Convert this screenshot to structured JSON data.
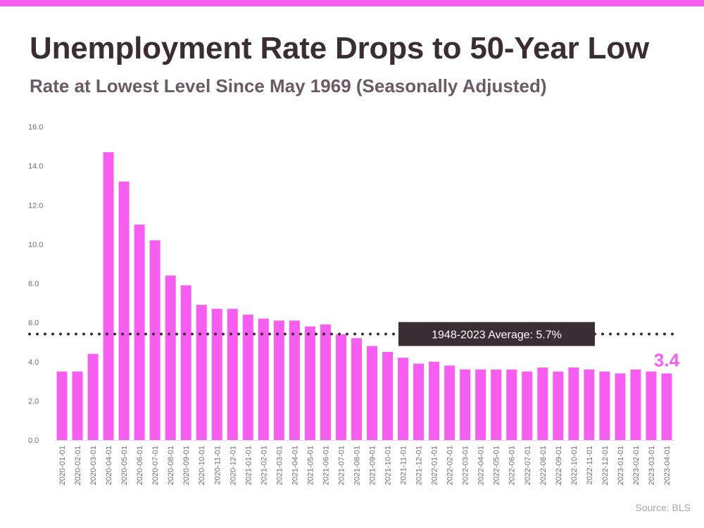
{
  "header": {
    "title": "Unemployment Rate Drops to 50-Year Low",
    "subtitle": "Rate at Lowest Level Since May 1969 (Seasonally Adjusted)"
  },
  "footer": {
    "source": "Source: BLS"
  },
  "colors": {
    "accent": "#f65df0",
    "reference_box": "#3a2d33",
    "title": "#3a2d33",
    "subtitle": "#6b5a66"
  },
  "chart_data": {
    "type": "bar",
    "title": "Unemployment Rate Drops to 50-Year Low",
    "subtitle": "Rate at Lowest Level Since May 1969 (Seasonally Adjusted)",
    "xlabel": "",
    "ylabel": "",
    "ylim": [
      0,
      16
    ],
    "yticks": [
      "0.0",
      "2.0",
      "4.0",
      "6.0",
      "8.0",
      "10.0",
      "12.0",
      "14.0",
      "16.0"
    ],
    "grid": false,
    "categories": [
      "2020-01-01",
      "2020-02-01",
      "2020-03-01",
      "2020-04-01",
      "2020-05-01",
      "2020-06-01",
      "2020-07-01",
      "2020-08-01",
      "2020-09-01",
      "2020-10-01",
      "2020-11-01",
      "2020-12-01",
      "2021-01-01",
      "2021-02-01",
      "2021-03-01",
      "2021-04-01",
      "2021-05-01",
      "2021-06-01",
      "2021-07-01",
      "2021-08-01",
      "2021-09-01",
      "2021-10-01",
      "2021-11-01",
      "2021-12-01",
      "2022-01-01",
      "2022-02-01",
      "2022-03-01",
      "2022-04-01",
      "2022-05-01",
      "2022-06-01",
      "2022-07-01",
      "2022-08-01",
      "2022-09-01",
      "2022-10-01",
      "2022-11-01",
      "2022-12-01",
      "2023-01-01",
      "2023-02-01",
      "2023-03-01",
      "2023-04-01"
    ],
    "values": [
      3.5,
      3.5,
      4.4,
      14.7,
      13.2,
      11.0,
      10.2,
      8.4,
      7.9,
      6.9,
      6.7,
      6.7,
      6.4,
      6.2,
      6.1,
      6.1,
      5.8,
      5.9,
      5.4,
      5.2,
      4.8,
      4.5,
      4.2,
      3.9,
      4.0,
      3.8,
      3.6,
      3.6,
      3.6,
      3.6,
      3.5,
      3.7,
      3.5,
      3.7,
      3.6,
      3.5,
      3.4,
      3.6,
      3.5,
      3.4
    ],
    "reference_line": {
      "value": 5.7,
      "label": "1948-2023 Average: 5.7%"
    },
    "callout": {
      "value": 3.4,
      "label": "3.4"
    }
  }
}
